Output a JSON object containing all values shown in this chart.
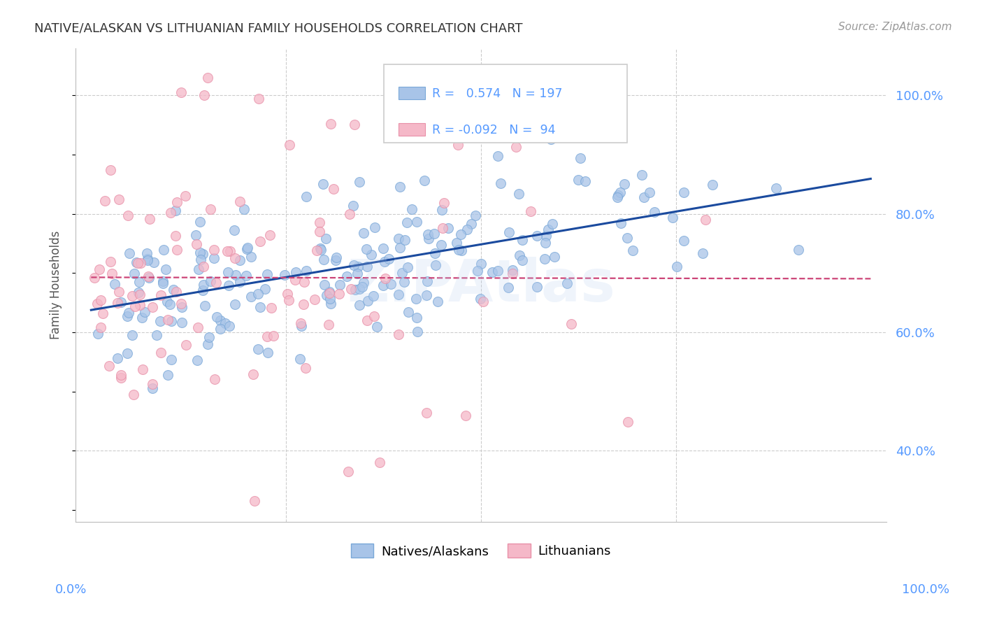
{
  "title": "NATIVE/ALASKAN VS LITHUANIAN FAMILY HOUSEHOLDS CORRELATION CHART",
  "source": "Source: ZipAtlas.com",
  "ylabel": "Family Households",
  "watermark": "ZIPAtlas",
  "blue_R": 0.574,
  "blue_N": 197,
  "pink_R": -0.092,
  "pink_N": 94,
  "blue_label": "Natives/Alaskans",
  "pink_label": "Lithuanians",
  "xlim": [
    -0.02,
    1.02
  ],
  "ylim": [
    0.28,
    1.08
  ],
  "ytick_labels": [
    "40.0%",
    "60.0%",
    "80.0%",
    "100.0%"
  ],
  "ytick_values": [
    0.4,
    0.6,
    0.8,
    1.0
  ],
  "blue_color": "#a8c4e8",
  "blue_edge_color": "#7aa8d8",
  "blue_line_color": "#1a4a9e",
  "pink_color": "#f5b8c8",
  "pink_edge_color": "#e890a8",
  "pink_line_color": "#cc4477",
  "background_color": "#ffffff",
  "grid_color": "#cccccc",
  "title_color": "#333333",
  "axis_label_color": "#5599ff",
  "ylabel_color": "#555555",
  "source_color": "#999999",
  "seed": 12
}
